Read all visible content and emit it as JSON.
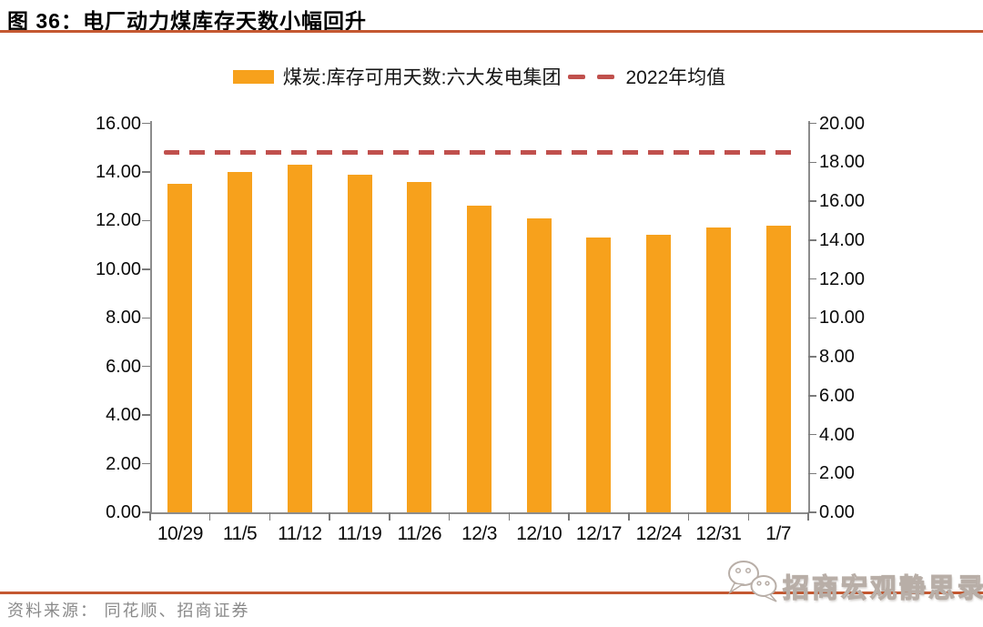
{
  "header": {
    "figure_label": "图 36：",
    "title": "电厂动力煤库存天数小幅回升"
  },
  "legend": {
    "bar_series_label": "煤炭:库存可用天数:六大发电集团",
    "line_series_label": "2022年均值"
  },
  "footer": {
    "source": "资料来源： 同花顺、招商证券",
    "watermark_text": "招商宏观静思录",
    "watermark_icon": "wechat-icon"
  },
  "colors": {
    "bar": "#F7A11C",
    "average_line": "#C0504D",
    "title": "#BE4E35",
    "rule": "#C45831",
    "axis_line": "#8c8c8c",
    "axis_text": "#0a0a0a",
    "source_text": "#8a8a8a"
  },
  "chart_data": {
    "type": "bar",
    "title": "电厂动力煤库存天数小幅回升",
    "categories": [
      "10/29",
      "11/5",
      "11/12",
      "11/19",
      "11/26",
      "12/3",
      "12/10",
      "12/17",
      "12/24",
      "12/31",
      "1/7"
    ],
    "series": [
      {
        "name": "煤炭:库存可用天数:六大发电集团",
        "type": "bar",
        "axis": "left",
        "values": [
          13.5,
          14.0,
          14.3,
          13.9,
          13.6,
          12.6,
          12.1,
          11.3,
          11.4,
          11.7,
          11.8
        ]
      },
      {
        "name": "2022年均值",
        "type": "dashed-line",
        "value_left_axis": 14.8,
        "value_right_axis": 18.5
      }
    ],
    "left_axis": {
      "min": 0,
      "max": 16,
      "step": 2,
      "tick_labels": [
        "16.00",
        "14.00",
        "12.00",
        "10.00",
        "8.00",
        "6.00",
        "4.00",
        "2.00",
        "0.00"
      ]
    },
    "right_axis": {
      "min": 0,
      "max": 20,
      "step": 2,
      "tick_labels": [
        "20.00",
        "18.00",
        "16.00",
        "14.00",
        "12.00",
        "10.00",
        "8.00",
        "6.00",
        "4.00",
        "2.00",
        "0.00"
      ]
    },
    "grid": false,
    "legend_position": "top"
  }
}
